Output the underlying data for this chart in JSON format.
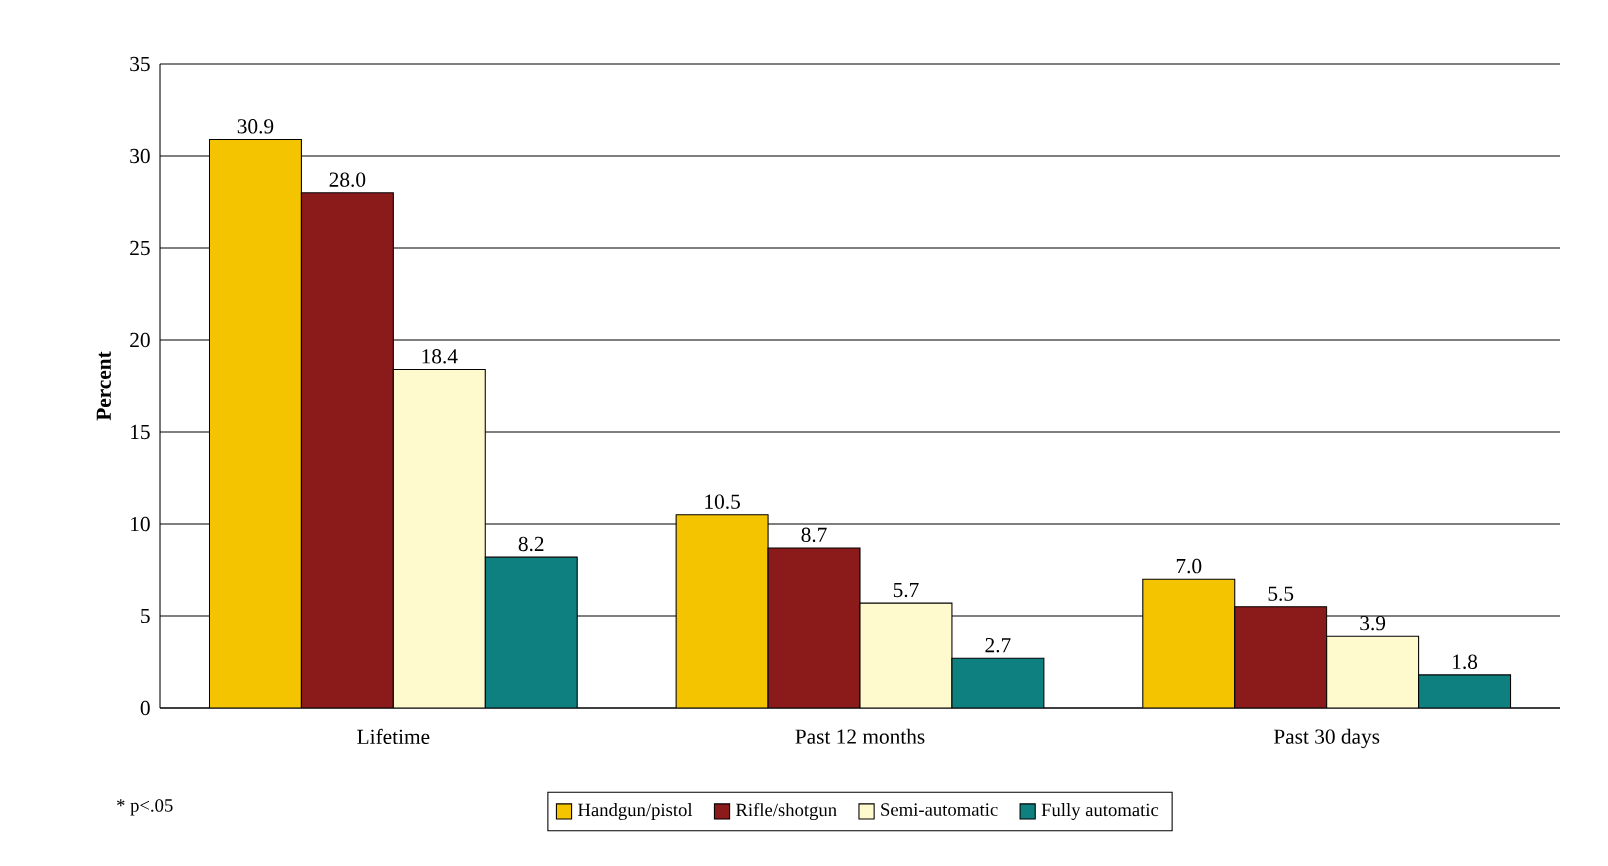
{
  "chart_data": {
    "type": "bar",
    "ylabel": "Percent",
    "categories": [
      "Lifetime",
      "Past 12 months",
      "Past  30 days"
    ],
    "series": [
      {
        "name": "Handgun/pistol",
        "color": "#f5c400",
        "values": [
          30.9,
          10.5,
          7.0
        ],
        "value_labels": [
          "30.9",
          "10.5",
          "7.0"
        ]
      },
      {
        "name": "Rifle/shotgun",
        "color": "#8b1a1a",
        "values": [
          28.0,
          8.7,
          5.5
        ],
        "value_labels": [
          "28.0",
          "8.7",
          "5.5"
        ]
      },
      {
        "name": "Semi-automatic",
        "color": "#fffacd",
        "values": [
          18.4,
          5.7,
          3.9
        ],
        "value_labels": [
          "18.4",
          "5.7",
          "3.9"
        ]
      },
      {
        "name": "Fully automatic",
        "color": "#0f8080",
        "values": [
          8.2,
          2.7,
          1.8
        ],
        "value_labels": [
          "8.2",
          "2.7",
          "1.8"
        ]
      }
    ],
    "ylim": [
      0,
      35
    ],
    "yticks": [
      0,
      5,
      10,
      15,
      20,
      25,
      30,
      35
    ],
    "grid": "y",
    "legend": "bottom",
    "annotations": [
      "* p<.05"
    ]
  }
}
